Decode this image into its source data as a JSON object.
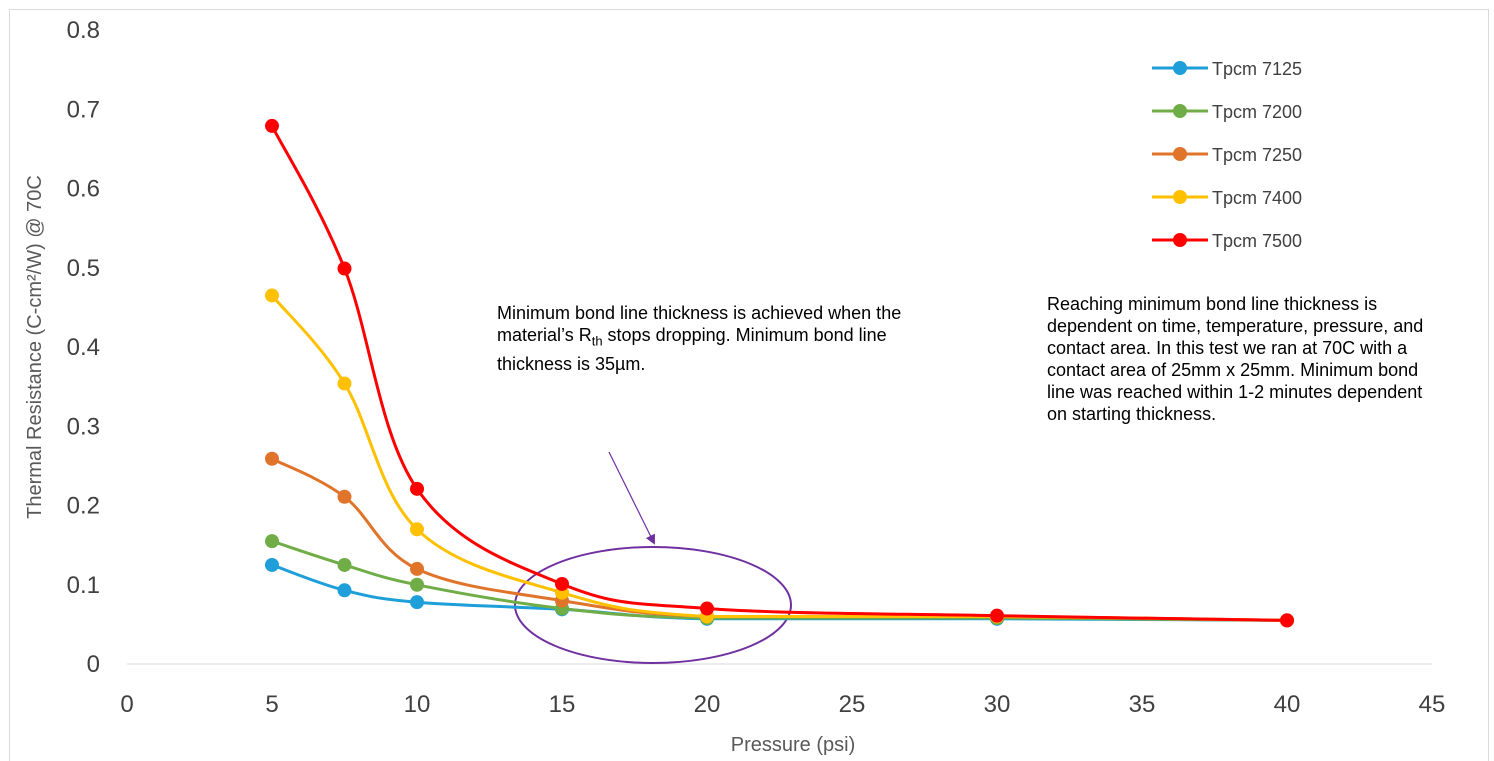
{
  "chart_data": {
    "type": "line",
    "smooth": true,
    "markers": true,
    "x": [
      5,
      7.5,
      10,
      15,
      20,
      30,
      40
    ],
    "xlabel": "Pressure (psi)",
    "ylabel": "Thermal Resistance  (C-cm²/W) @ 70C",
    "xlim": [
      0,
      45
    ],
    "ylim": [
      0,
      0.8
    ],
    "x_ticks": [
      "0",
      "5",
      "10",
      "15",
      "20",
      "25",
      "30",
      "35",
      "40",
      "45"
    ],
    "y_ticks": [
      "0",
      "0.1",
      "0.2",
      "0.3",
      "0.4",
      "0.5",
      "0.6",
      "0.7",
      "0.8"
    ],
    "grid": false,
    "legend_position": "top-right",
    "series": [
      {
        "name": "Tpcm 7125",
        "color": "#1f9fd9",
        "values": [
          0.125,
          0.093,
          0.078,
          0.069,
          0.057,
          0.057,
          0.055
        ]
      },
      {
        "name": "Tpcm 7200",
        "color": "#70ad47",
        "values": [
          0.155,
          0.125,
          0.1,
          0.07,
          0.058,
          0.058,
          0.055
        ]
      },
      {
        "name": "Tpcm 7250",
        "color": "#e0742b",
        "values": [
          0.259,
          0.211,
          0.12,
          0.08,
          0.06,
          0.06,
          0.055
        ]
      },
      {
        "name": "Tpcm 7400",
        "color": "#ffc000",
        "values": [
          0.465,
          0.354,
          0.17,
          0.09,
          0.06,
          0.06,
          0.055
        ]
      },
      {
        "name": "Tpcm 7500",
        "color": "#ff0000",
        "values": [
          0.679,
          0.499,
          0.221,
          0.101,
          0.07,
          0.061,
          0.055
        ]
      }
    ],
    "annotations": [
      {
        "id": "bond-line-note",
        "text_before": "Minimum bond line thickness is achieved when the material’s R",
        "subscript": "th",
        "text_after": " stops dropping. Minimum bond line thickness is 35µm.",
        "arrow_color": "#7030a0",
        "ellipse_color": "#7030a0"
      },
      {
        "id": "test-note",
        "text": "Reaching minimum bond line thickness is dependent on time, temperature, pressure, and contact area.  In this test we ran at 70C with a contact area of 25mm x 25mm. Minimum bond line was reached within 1-2 minutes dependent on starting thickness."
      }
    ]
  }
}
